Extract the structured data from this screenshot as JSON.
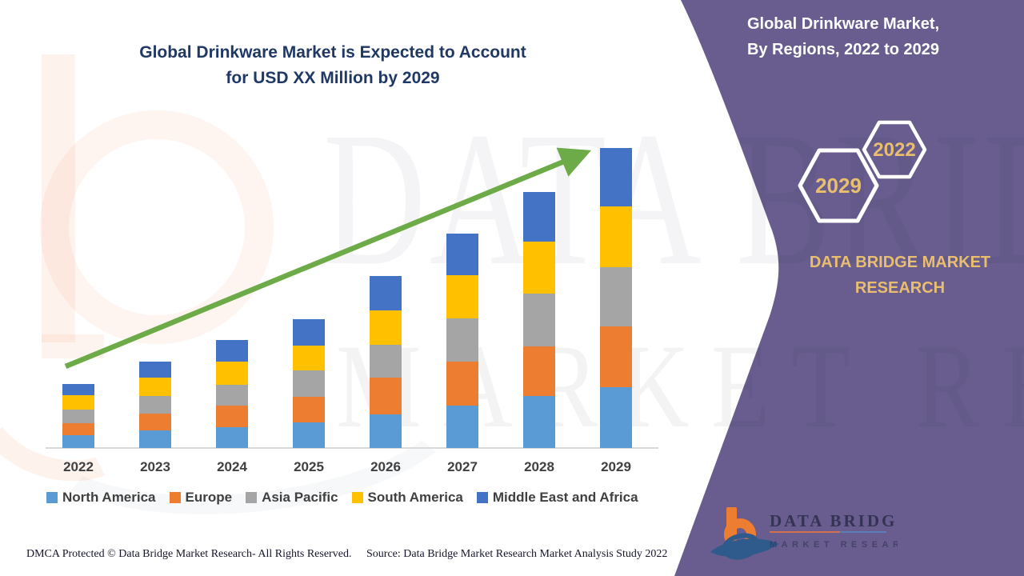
{
  "title": {
    "line1": "Global Drinkware Market is Expected to Account",
    "line2": "for USD XX Million by 2029"
  },
  "panel": {
    "title_line1": "Global Drinkware Market,",
    "title_line2": "By Regions, 2022 to 2029",
    "hexagons": [
      {
        "label": "2029"
      },
      {
        "label": "2022"
      }
    ],
    "brand_line1": "DATA BRIDGE MARKET",
    "brand_line2": "RESEARCH"
  },
  "logo": {
    "line1": "DATA BRIDGE",
    "line2": "MARKET RESEARCH"
  },
  "watermark": {
    "line1": "DATA BRIDGE",
    "line2": "MARKET RESEARCH"
  },
  "footer": {
    "dmca": "DMCA Protected © Data Bridge Market Research- All Rights Reserved.",
    "source": "Source: Data Bridge Market Research Market Analysis Study 2022"
  },
  "colors": {
    "purple_panel": "#685D8E",
    "title_navy": "#1F3864",
    "gold": "#E9BE6E",
    "green_arrow": "#6CAB47",
    "axis_gray": "#D9D9D9",
    "label_gray": "#404040"
  },
  "chart_data": {
    "type": "bar",
    "stacked": true,
    "title": "Global Drinkware Market is Expected to Account for USD XX Million by 2029",
    "xlabel": "",
    "ylabel": "",
    "y_axis_shown": false,
    "units": "relative units (y-axis unlabeled; values shown as USD XX Million)",
    "legend_position": "bottom",
    "trend_arrow": true,
    "categories": [
      "2022",
      "2023",
      "2024",
      "2025",
      "2026",
      "2027",
      "2028",
      "2029"
    ],
    "series": [
      {
        "name": "North America",
        "color": "#5B9BD5",
        "values": [
          16,
          22,
          26,
          32,
          42,
          53,
          65,
          76
        ]
      },
      {
        "name": "Europe",
        "color": "#ED7D31",
        "values": [
          15,
          21,
          27,
          32,
          46,
          55,
          62,
          76
        ]
      },
      {
        "name": "Asia Pacific",
        "color": "#A5A5A5",
        "values": [
          17,
          22,
          26,
          33,
          41,
          54,
          66,
          74
        ]
      },
      {
        "name": "South America",
        "color": "#FFC000",
        "values": [
          18,
          23,
          29,
          31,
          43,
          54,
          65,
          76
        ]
      },
      {
        "name": "Middle East and Africa",
        "color": "#4472C4",
        "values": [
          14,
          20,
          27,
          33,
          43,
          52,
          62,
          73
        ]
      }
    ],
    "totals": [
      80,
      108,
      135,
      161,
      215,
      268,
      320,
      375
    ]
  }
}
